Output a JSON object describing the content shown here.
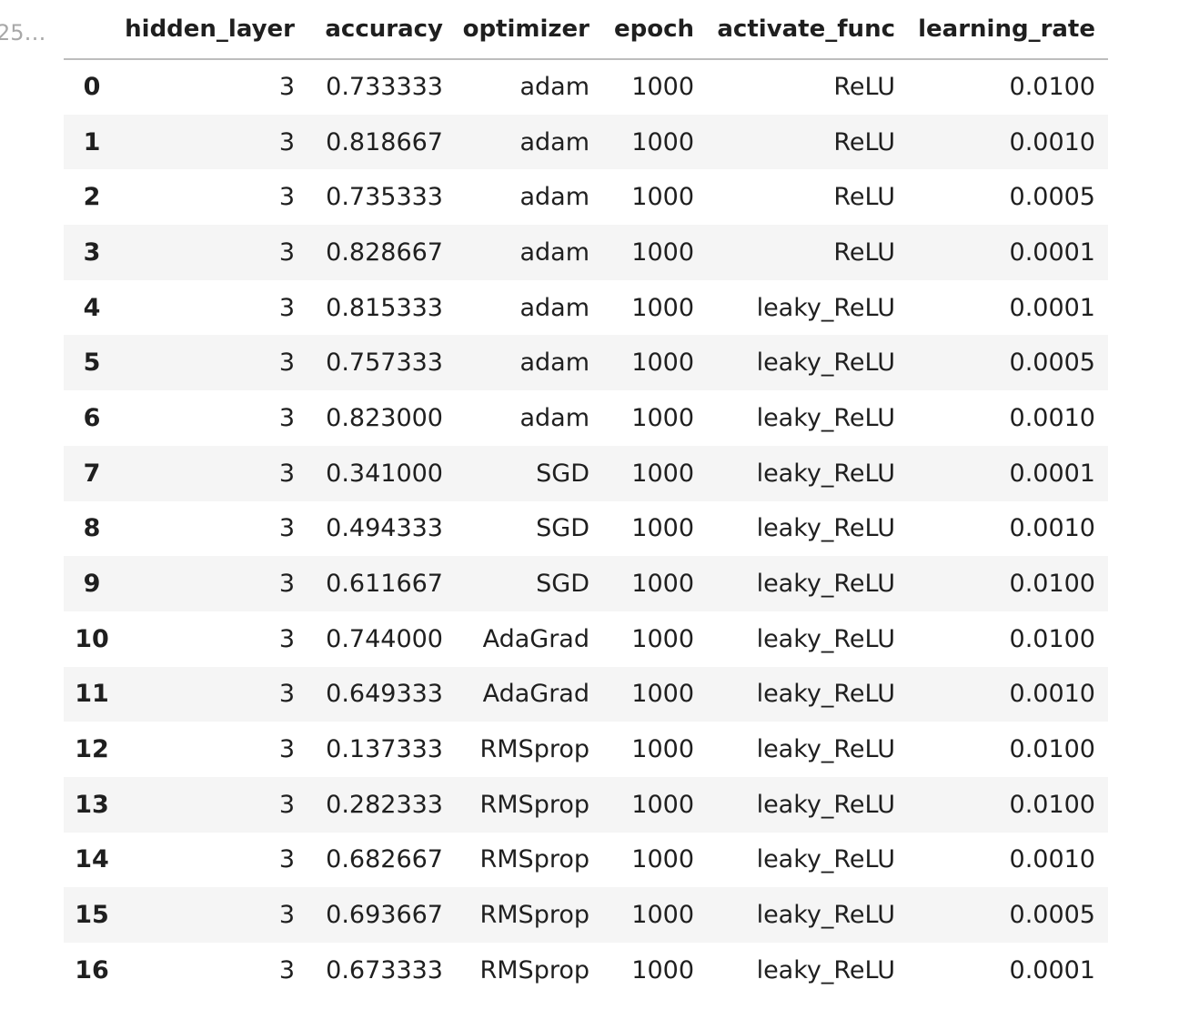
{
  "cell": {
    "execution_count": "25…"
  },
  "table": {
    "index_header": "",
    "columns": [
      "hidden_layer",
      "accuracy",
      "optimizer",
      "epoch",
      "activate_func",
      "learning_rate"
    ],
    "rows": [
      {
        "index": "0",
        "hidden_layer": "3",
        "accuracy": "0.733333",
        "optimizer": "adam",
        "epoch": "1000",
        "activate_func": "ReLU",
        "learning_rate": "0.0100"
      },
      {
        "index": "1",
        "hidden_layer": "3",
        "accuracy": "0.818667",
        "optimizer": "adam",
        "epoch": "1000",
        "activate_func": "ReLU",
        "learning_rate": "0.0010"
      },
      {
        "index": "2",
        "hidden_layer": "3",
        "accuracy": "0.735333",
        "optimizer": "adam",
        "epoch": "1000",
        "activate_func": "ReLU",
        "learning_rate": "0.0005"
      },
      {
        "index": "3",
        "hidden_layer": "3",
        "accuracy": "0.828667",
        "optimizer": "adam",
        "epoch": "1000",
        "activate_func": "ReLU",
        "learning_rate": "0.0001"
      },
      {
        "index": "4",
        "hidden_layer": "3",
        "accuracy": "0.815333",
        "optimizer": "adam",
        "epoch": "1000",
        "activate_func": "leaky_ReLU",
        "learning_rate": "0.0001"
      },
      {
        "index": "5",
        "hidden_layer": "3",
        "accuracy": "0.757333",
        "optimizer": "adam",
        "epoch": "1000",
        "activate_func": "leaky_ReLU",
        "learning_rate": "0.0005"
      },
      {
        "index": "6",
        "hidden_layer": "3",
        "accuracy": "0.823000",
        "optimizer": "adam",
        "epoch": "1000",
        "activate_func": "leaky_ReLU",
        "learning_rate": "0.0010"
      },
      {
        "index": "7",
        "hidden_layer": "3",
        "accuracy": "0.341000",
        "optimizer": "SGD",
        "epoch": "1000",
        "activate_func": "leaky_ReLU",
        "learning_rate": "0.0001"
      },
      {
        "index": "8",
        "hidden_layer": "3",
        "accuracy": "0.494333",
        "optimizer": "SGD",
        "epoch": "1000",
        "activate_func": "leaky_ReLU",
        "learning_rate": "0.0010"
      },
      {
        "index": "9",
        "hidden_layer": "3",
        "accuracy": "0.611667",
        "optimizer": "SGD",
        "epoch": "1000",
        "activate_func": "leaky_ReLU",
        "learning_rate": "0.0100"
      },
      {
        "index": "10",
        "hidden_layer": "3",
        "accuracy": "0.744000",
        "optimizer": "AdaGrad",
        "epoch": "1000",
        "activate_func": "leaky_ReLU",
        "learning_rate": "0.0100"
      },
      {
        "index": "11",
        "hidden_layer": "3",
        "accuracy": "0.649333",
        "optimizer": "AdaGrad",
        "epoch": "1000",
        "activate_func": "leaky_ReLU",
        "learning_rate": "0.0010"
      },
      {
        "index": "12",
        "hidden_layer": "3",
        "accuracy": "0.137333",
        "optimizer": "RMSprop",
        "epoch": "1000",
        "activate_func": "leaky_ReLU",
        "learning_rate": "0.0100"
      },
      {
        "index": "13",
        "hidden_layer": "3",
        "accuracy": "0.282333",
        "optimizer": "RMSprop",
        "epoch": "1000",
        "activate_func": "leaky_ReLU",
        "learning_rate": "0.0100"
      },
      {
        "index": "14",
        "hidden_layer": "3",
        "accuracy": "0.682667",
        "optimizer": "RMSprop",
        "epoch": "1000",
        "activate_func": "leaky_ReLU",
        "learning_rate": "0.0010"
      },
      {
        "index": "15",
        "hidden_layer": "3",
        "accuracy": "0.693667",
        "optimizer": "RMSprop",
        "epoch": "1000",
        "activate_func": "leaky_ReLU",
        "learning_rate": "0.0005"
      },
      {
        "index": "16",
        "hidden_layer": "3",
        "accuracy": "0.673333",
        "optimizer": "RMSprop",
        "epoch": "1000",
        "activate_func": "leaky_ReLU",
        "learning_rate": "0.0001"
      }
    ]
  },
  "colors": {
    "stripe": "#f5f5f5",
    "header_rule": "#bdbdbd",
    "text": "#1f1f1f",
    "execution_count": "#a8a8a8"
  }
}
